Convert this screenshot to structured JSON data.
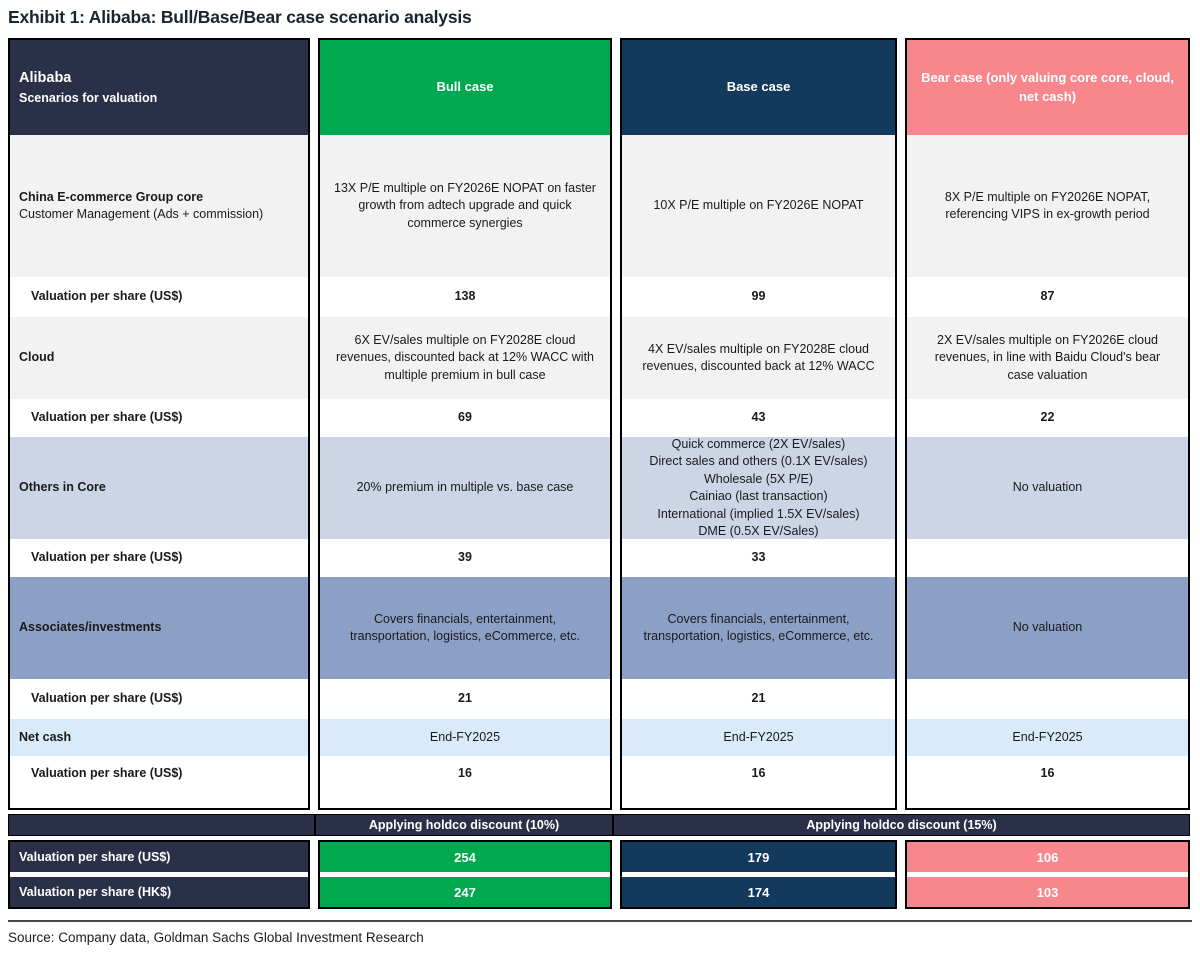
{
  "title": "Exhibit 1: Alibaba: Bull/Base/Bear case scenario analysis",
  "source": "Source: Company data, Goldman Sachs Global Investment Research",
  "colors": {
    "label_navy": "#293048",
    "bull_green": "#00a94f",
    "base_navy": "#13395d",
    "bear_pink": "#f8878d",
    "row_grey": "#f2f2f2",
    "others_blue": "#ccd5e6",
    "associates_blue": "#8ca0c6",
    "netcash_blue": "#d9ebfa"
  },
  "header": {
    "label_title": "Alibaba",
    "label_subtitle": "Scenarios for valuation",
    "columns": [
      "Bull case",
      "Base case",
      "Bear case (only valuing core core, cloud, net cash)"
    ]
  },
  "rows": [
    {
      "label": "China E-commerce Group core",
      "sublabel": "Customer Management (Ads + commission)",
      "bull": "13X P/E multiple on FY2026E NOPAT on faster growth from adtech upgrade and quick commerce synergies",
      "base": "10X P/E multiple on FY2026E NOPAT",
      "bear": "8X P/E multiple on FY2026E NOPAT, referencing VIPS in ex-growth period",
      "val_label": "Valuation per share (US$)",
      "bull_val": "138",
      "base_val": "99",
      "bear_val": "87"
    },
    {
      "label": "Cloud",
      "bull": "6X EV/sales multiple on FY2028E cloud revenues, discounted back at 12% WACC with multiple premium in bull case",
      "base": "4X EV/sales multiple on FY2028E cloud revenues, discounted back at 12% WACC",
      "bear": "2X EV/sales multiple on FY2026E cloud revenues, in line with Baidu Cloud's bear case valuation",
      "val_label": "Valuation per share (US$)",
      "bull_val": "69",
      "base_val": "43",
      "bear_val": "22"
    },
    {
      "label": "Others in Core",
      "bull": "20% premium in multiple vs. base case",
      "base": "Quick commerce (2X EV/sales)\nDirect sales and others (0.1X EV/sales)\nWholesale (5X P/E)\nCainiao (last transaction)\nInternational (implied 1.5X EV/sales)\nDME (0.5X EV/Sales)",
      "bear": "No valuation",
      "val_label": "Valuation per share (US$)",
      "bull_val": "39",
      "base_val": "33",
      "bear_val": ""
    },
    {
      "label": "Associates/investments",
      "bull": "Covers financials, entertainment, transportation, logistics, eCommerce, etc.",
      "base": "Covers financials, entertainment, transportation, logistics, eCommerce, etc.",
      "bear": "No valuation",
      "val_label": "Valuation per share (US$)",
      "bull_val": "21",
      "base_val": "21",
      "bear_val": ""
    },
    {
      "label": "Net cash",
      "bull": "End-FY2025",
      "base": "End-FY2025",
      "bear": "End-FY2025",
      "val_label": "Valuation per share (US$)",
      "bull_val": "16",
      "base_val": "16",
      "bear_val": "16"
    }
  ],
  "holdco": {
    "bull": "Applying holdco discount (10%)",
    "base_bear": "Applying holdco discount (15%)"
  },
  "totals": [
    {
      "label": "Valuation per share (US$)",
      "bull": "254",
      "base": "179",
      "bear": "106"
    },
    {
      "label": "Valuation per share (HK$)",
      "bull": "247",
      "base": "174",
      "bear": "103"
    }
  ]
}
